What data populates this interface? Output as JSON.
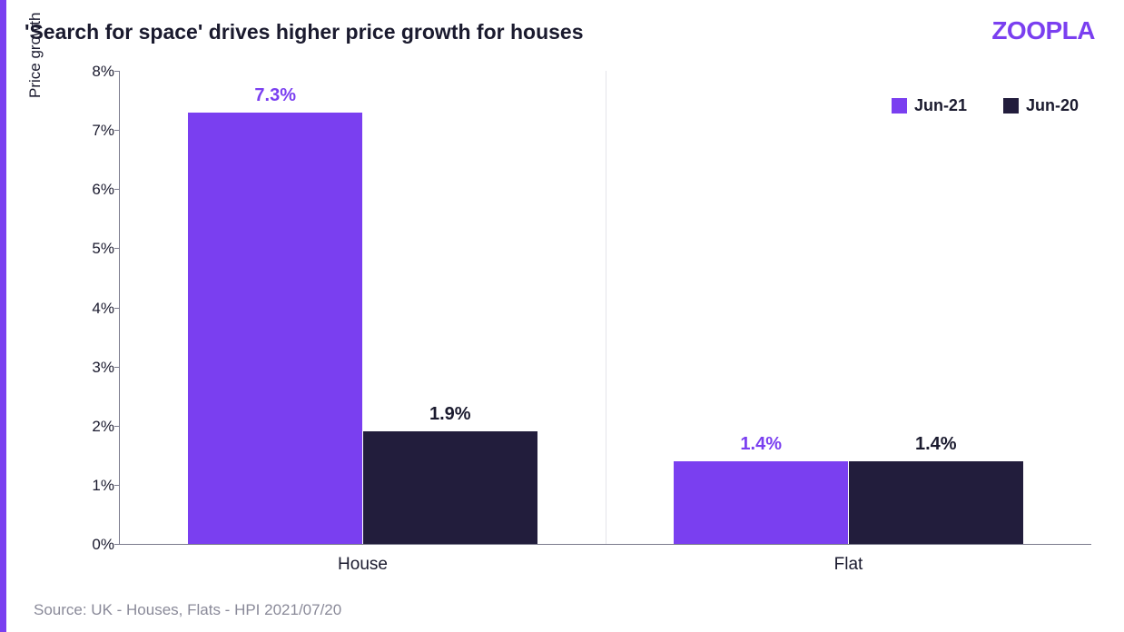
{
  "title": "'Search for space' drives higher price growth for houses",
  "brand": "ZOOPLA",
  "source": "Source: UK - Houses, Flats - HPI 2021/07/20",
  "chart": {
    "type": "bar",
    "ylabel": "Price growth",
    "ylim": [
      0,
      8
    ],
    "ytick_step": 1,
    "ytick_suffix": "%",
    "categories": [
      "House",
      "Flat"
    ],
    "series": [
      {
        "name": "Jun-21",
        "color": "#7a3ff0",
        "label_color": "#7a3ff0",
        "values": [
          7.3,
          1.4
        ]
      },
      {
        "name": "Jun-20",
        "color": "#221d3c",
        "label_color": "#1a1a2e",
        "values": [
          1.9,
          1.4
        ]
      }
    ],
    "value_suffix": "%",
    "bar_group_width_pct": 36,
    "background_color": "#ffffff",
    "axis_color": "#7a7a8c",
    "vgrid_color": "#e4e4ea",
    "title_fontsize": 23,
    "label_fontsize": 17,
    "value_fontsize": 20,
    "legend_fontsize": 18,
    "brand_color": "#7a3ff0"
  }
}
